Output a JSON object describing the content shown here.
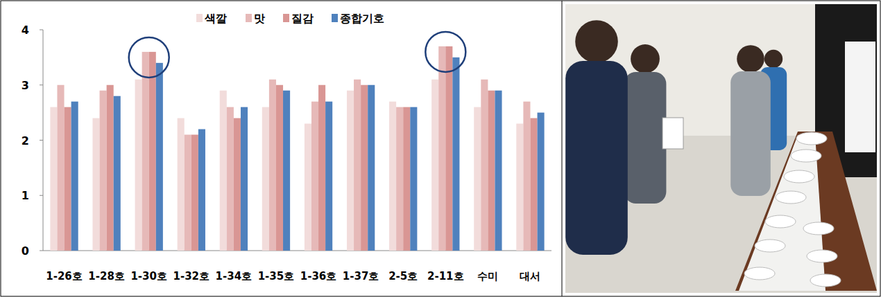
{
  "chart_data": {
    "type": "bar",
    "categories": [
      "1-26호",
      "1-28호",
      "1-30호",
      "1-32호",
      "1-34호",
      "1-35호",
      "1-36호",
      "1-37호",
      "2-5호",
      "2-11호",
      "수미",
      "대서"
    ],
    "series": [
      {
        "name": "색깔",
        "color": "#f2dcdb",
        "values": [
          2.6,
          2.4,
          3.1,
          2.4,
          2.9,
          2.6,
          2.3,
          2.9,
          2.7,
          3.1,
          2.6,
          2.3
        ]
      },
      {
        "name": "맛",
        "color": "#e6b9b8",
        "values": [
          3.0,
          2.9,
          3.6,
          2.1,
          2.6,
          3.1,
          2.7,
          3.1,
          2.6,
          3.7,
          3.1,
          2.7
        ]
      },
      {
        "name": "질감",
        "color": "#d99694",
        "values": [
          2.6,
          3.0,
          3.6,
          2.1,
          2.4,
          3.0,
          3.0,
          3.0,
          2.6,
          3.7,
          2.9,
          2.4
        ]
      },
      {
        "name": "종합기호",
        "color": "#4f81bd",
        "values": [
          2.7,
          2.8,
          3.4,
          2.2,
          2.6,
          2.9,
          2.7,
          3.0,
          2.6,
          3.5,
          2.9,
          2.5
        ]
      }
    ],
    "ylim": [
      0,
      4
    ],
    "yticks": [
      0,
      1,
      2,
      3,
      4
    ],
    "grid": false,
    "legend": "top-right"
  }
}
